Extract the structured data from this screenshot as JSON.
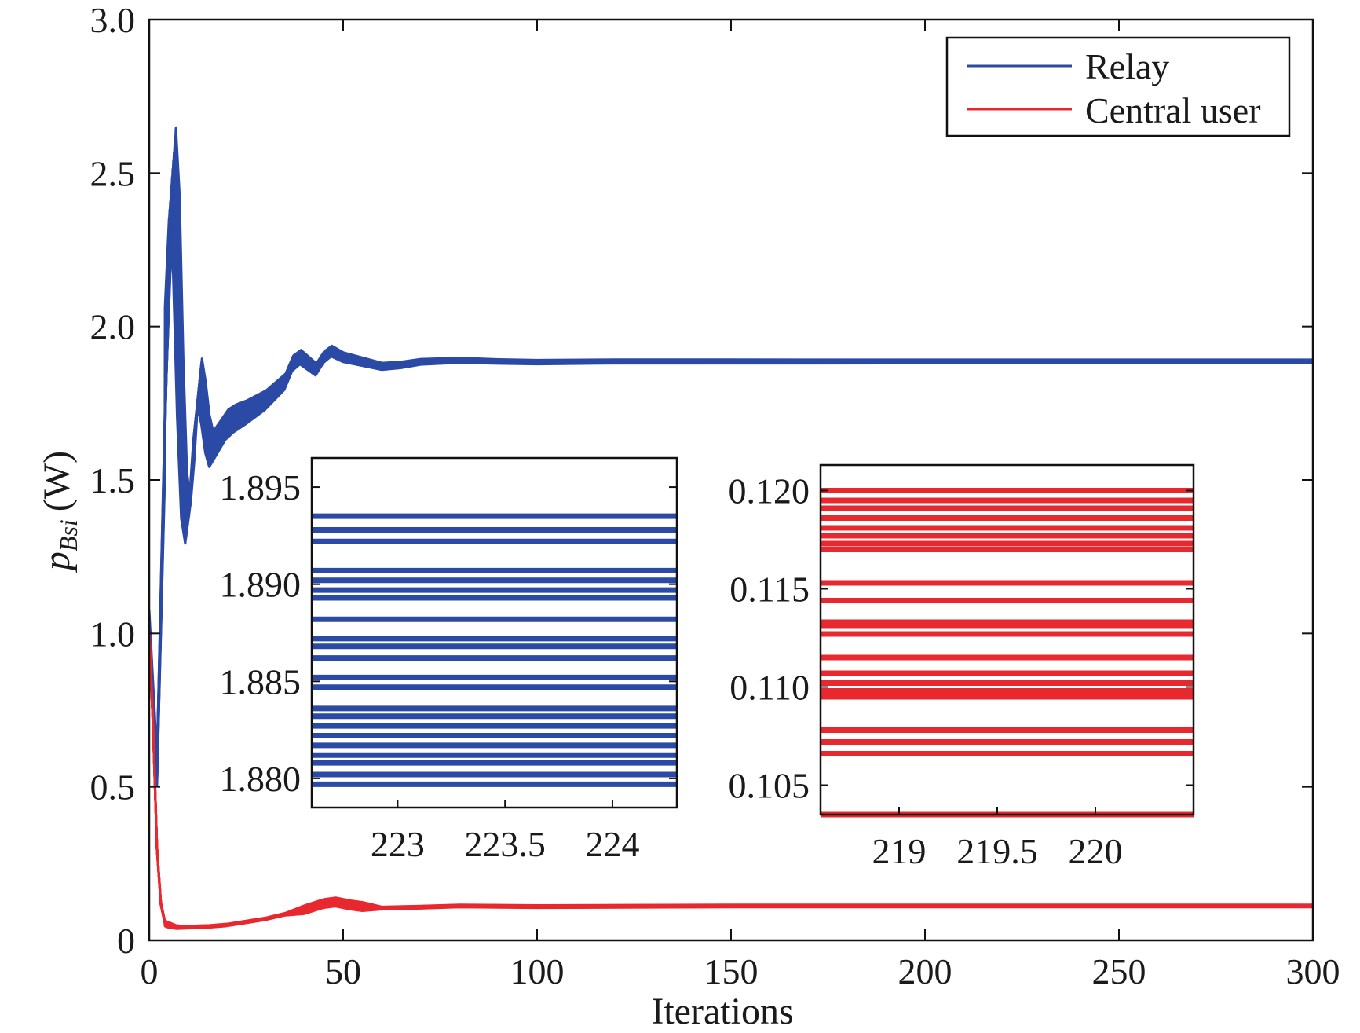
{
  "chart_data": [
    {
      "type": "line",
      "title": "",
      "xlabel": "Iterations",
      "ylabel": {
        "symbol": "p",
        "subscript": "Bsi",
        "unit": "(W)"
      },
      "xlim": [
        0,
        300
      ],
      "ylim": [
        0,
        3.0
      ],
      "xticks": [
        0,
        50,
        100,
        150,
        200,
        250,
        300
      ],
      "xtick_labels": [
        "0",
        "50",
        "100",
        "150",
        "200",
        "250",
        "300"
      ],
      "yticks": [
        0,
        0.5,
        1.0,
        1.5,
        2.0,
        2.5,
        3.0
      ],
      "ytick_labels": [
        "0",
        "0.5",
        "1.0",
        "1.5",
        "2.0",
        "2.5",
        "3.0"
      ],
      "grid": false,
      "legend_position": "top-right",
      "series": [
        {
          "name": "Relay",
          "color": "#2b4aa6",
          "curves": 12,
          "x": [
            0,
            2,
            4,
            5,
            6,
            7,
            8,
            9,
            10,
            11,
            12,
            13,
            14,
            15,
            16,
            18,
            20,
            22,
            25,
            30,
            35,
            37,
            39,
            41,
            43,
            45,
            47,
            50,
            55,
            60,
            65,
            70,
            80,
            90,
            100,
            120,
            150,
            200,
            250,
            300
          ],
          "y": [
            1.0,
            0.55,
            1.6,
            2.2,
            2.5,
            2.3,
            1.8,
            1.45,
            1.36,
            1.5,
            1.7,
            1.82,
            1.75,
            1.65,
            1.6,
            1.64,
            1.68,
            1.7,
            1.72,
            1.76,
            1.82,
            1.88,
            1.9,
            1.88,
            1.86,
            1.9,
            1.92,
            1.9,
            1.885,
            1.87,
            1.875,
            1.885,
            1.89,
            1.886,
            1.884,
            1.886,
            1.886,
            1.886,
            1.886,
            1.886
          ]
        },
        {
          "name": "Central user",
          "color": "#e8282f",
          "curves": 12,
          "x": [
            0,
            1,
            2,
            3,
            4,
            5,
            6,
            8,
            10,
            15,
            20,
            25,
            30,
            35,
            40,
            45,
            48,
            52,
            55,
            60,
            70,
            80,
            100,
            150,
            200,
            250,
            300
          ],
          "y": [
            1.0,
            0.7,
            0.3,
            0.12,
            0.06,
            0.05,
            0.045,
            0.042,
            0.043,
            0.045,
            0.05,
            0.06,
            0.07,
            0.085,
            0.1,
            0.12,
            0.125,
            0.115,
            0.11,
            0.105,
            0.108,
            0.112,
            0.11,
            0.112,
            0.112,
            0.112,
            0.112
          ]
        }
      ]
    },
    {
      "type": "line",
      "title": "",
      "xlabel": "",
      "ylabel": "",
      "xlim": [
        222.6,
        224.3
      ],
      "ylim": [
        1.8785,
        1.8965
      ],
      "xticks": [
        223,
        223.5,
        224
      ],
      "xtick_labels": [
        "223",
        "223.5",
        "224"
      ],
      "yticks": [
        1.88,
        1.885,
        1.89,
        1.895
      ],
      "ytick_labels": [
        "1.880",
        "1.885",
        "1.890",
        "1.895"
      ],
      "grid": false,
      "series": [
        {
          "name": "Relay",
          "color": "#2b4aa6",
          "levels": [
            1.8797,
            1.8802,
            1.8808,
            1.8812,
            1.8817,
            1.8822,
            1.8827,
            1.8832,
            1.8836,
            1.8847,
            1.8852,
            1.8862,
            1.8868,
            1.8872,
            1.8882,
            1.8893,
            1.8897,
            1.8902,
            1.8907,
            1.8922,
            1.8928,
            1.8935
          ]
        }
      ]
    },
    {
      "type": "line",
      "title": "",
      "xlabel": "",
      "ylabel": "",
      "xlim": [
        218.6,
        220.5
      ],
      "ylim": [
        0.1035,
        0.1213
      ],
      "xticks": [
        219,
        219.5,
        220
      ],
      "xtick_labels": [
        "219",
        "219.5",
        "220"
      ],
      "yticks": [
        0.105,
        0.11,
        0.115,
        0.12
      ],
      "ytick_labels": [
        "0.105",
        "0.110",
        "0.115",
        "0.120"
      ],
      "grid": false,
      "series": [
        {
          "name": "Central user",
          "color": "#e8282f",
          "levels": [
            0.1035,
            0.1066,
            0.1072,
            0.1078,
            0.1095,
            0.1098,
            0.1102,
            0.1107,
            0.1115,
            0.1127,
            0.1131,
            0.1133,
            0.1144,
            0.1153,
            0.117,
            0.1173,
            0.1177,
            0.1181,
            0.1186,
            0.1191,
            0.1195,
            0.12
          ]
        }
      ]
    }
  ]
}
